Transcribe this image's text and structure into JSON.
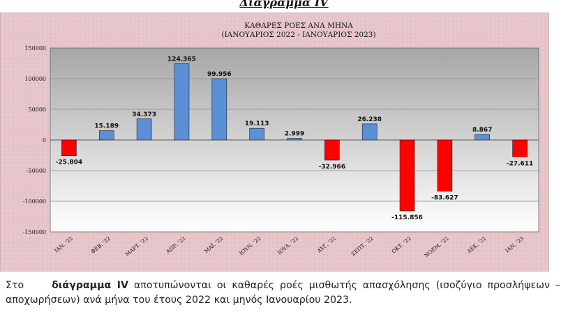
{
  "document": {
    "heading": "Διάγραμμα IV",
    "caption_intro": "Στο",
    "caption_ref": "διάγραμμα IV",
    "caption_rest": "αποτυπώνονται οι καθαρές ροές μισθωτής απασχόλησης (ισοζύγιο προσλήψεων – αποχωρήσεων) ανά μήνα του έτους 2022 και μηνός Ιανουαρίου 2023."
  },
  "chart_data": {
    "type": "bar",
    "title": "ΚΑΘΑΡΕΣ ΡΟΕΣ ΑΝΑ ΜΗΝΑ",
    "subtitle": "(ΙΑΝΟΥΑΡΙΟΣ 2022 - ΙΑΝΟΥΑΡΙΟΣ 2023)",
    "categories": [
      "ΙΑΝ. '22",
      "ΦΕΒ. '22",
      "ΜΑΡΤ. '22",
      "ΑΠΡ. '22",
      "ΜΑΪ. '22",
      "ΙΟΥΝ. '22",
      "ΙΟΥΛ. '22",
      "ΑΥΓ. '22",
      "ΣΕΠΤ. '22",
      "ΟΚΤ. '22",
      "ΝΟΕΜ. '22",
      "ΔΕΚ. '22",
      "ΙΑΝ. '23"
    ],
    "values": [
      -25804,
      15189,
      34373,
      124365,
      99956,
      19113,
      2999,
      -32966,
      26238,
      -115856,
      -83627,
      8867,
      -27611
    ],
    "value_labels": [
      "-25.804",
      "15.189",
      "34.373",
      "124.365",
      "99.956",
      "19.113",
      "2.999",
      "-32.966",
      "26.238",
      "-115.856",
      "-83.627",
      "8.867",
      "-27.611"
    ],
    "ylim": [
      -150000,
      150000
    ],
    "yticks": [
      -150000,
      -100000,
      -50000,
      0,
      50000,
      100000,
      150000
    ],
    "ytick_labels": [
      "-150000",
      "-100000",
      "-50000",
      "0",
      "50000",
      "100000",
      "150000"
    ],
    "grid": true,
    "legend": "none",
    "colors": {
      "positive": "#5b8fd6",
      "negative": "#ff0000",
      "outer_background": "#e7c9cd",
      "plot_background_top": "#a6a6a6",
      "plot_background_bottom": "#ffffff"
    }
  }
}
